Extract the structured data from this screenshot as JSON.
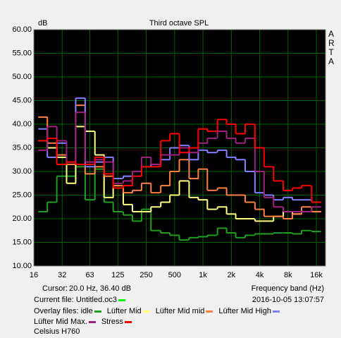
{
  "chart_data": {
    "type": "line",
    "step": true,
    "title": "Third octave SPL",
    "y_label": "dB",
    "brand": "ARTA",
    "x_label": "Frequency band (Hz)",
    "cursor_label": "Cursor:",
    "cursor_value": "20.0 Hz, 36.40 dB",
    "current_file": "Current file: Untitled.oc3",
    "current_file_color": "#00ff00",
    "timestamp": "2016-10-05  13:07:57",
    "overlay_label": "Overlay files:",
    "footer": "Celsius H760",
    "log_x": true,
    "grid": true,
    "xlim": [
      16,
      20000
    ],
    "ylim": [
      10,
      60
    ],
    "xticks": [
      16,
      32,
      63,
      125,
      250,
      500,
      {
        "value": 1000,
        "label": "1k"
      },
      {
        "value": 2000,
        "label": "2k"
      },
      {
        "value": 4000,
        "label": "4k"
      },
      {
        "value": 8000,
        "label": "8k"
      },
      {
        "value": 16000,
        "label": "16k"
      }
    ],
    "yticks": [
      {
        "value": 10,
        "label": "10.00"
      },
      {
        "value": 15,
        "label": "15.00"
      },
      {
        "value": 20,
        "label": "20.00"
      },
      {
        "value": 25,
        "label": "25.00"
      },
      {
        "value": 30,
        "label": "30.00"
      },
      {
        "value": 35,
        "label": "35.00"
      },
      {
        "value": 40,
        "label": "40.00"
      },
      {
        "value": 45,
        "label": "45.00"
      },
      {
        "value": 50,
        "label": "50.00"
      },
      {
        "value": 55,
        "label": "55.00"
      },
      {
        "value": 60,
        "label": "60.00"
      }
    ],
    "x": [
      20,
      25,
      31.5,
      40,
      50,
      63,
      80,
      100,
      125,
      160,
      200,
      250,
      315,
      400,
      500,
      630,
      800,
      1000,
      1250,
      1600,
      2000,
      2500,
      3150,
      4000,
      5000,
      6300,
      8000,
      10000,
      12500,
      16000
    ],
    "series": [
      {
        "name": "idle",
        "color": "#20a020",
        "values": [
          21.5,
          23.5,
          29,
          29,
          31,
          24,
          30.5,
          23.5,
          21.5,
          20.8,
          19.5,
          22,
          17.5,
          17,
          16.5,
          15.5,
          16,
          16.2,
          16.5,
          18,
          17,
          16,
          16.5,
          16.8,
          16.8,
          17,
          17,
          16.8,
          17.5,
          17.3
        ]
      },
      {
        "name": "Lüfter Mid",
        "color": "#ffff80",
        "values": [
          36.5,
          35,
          33,
          27.5,
          39.5,
          38.5,
          33.5,
          24.5,
          27,
          23,
          21.5,
          21.5,
          22.5,
          23.5,
          25,
          28,
          24.5,
          24,
          22,
          22.5,
          21,
          20,
          20,
          19.5,
          19.5,
          20.5,
          21.5,
          21,
          21.5,
          21.5
        ]
      },
      {
        "name": "Lüfter Mid mid",
        "color": "#ff8040",
        "values": [
          41.5,
          36,
          33.5,
          31.5,
          44,
          29.5,
          31,
          29,
          27,
          25.5,
          26,
          27.5,
          25.5,
          27,
          30,
          32.5,
          28.5,
          30.5,
          26,
          26.5,
          25,
          25,
          23.5,
          22,
          20.5,
          20.5,
          20,
          21,
          22.5,
          21.5
        ]
      },
      {
        "name": "Lüfter Mid High",
        "color": "#8080ff",
        "values": [
          39,
          33,
          36,
          32,
          45.5,
          31,
          32,
          33,
          28.5,
          29,
          30,
          31,
          31.5,
          32.5,
          35,
          35.5,
          32.5,
          34.5,
          34,
          34.5,
          33,
          32.5,
          30,
          25.5,
          25,
          24,
          24.5,
          24,
          24,
          23.5
        ]
      },
      {
        "name": "Lüfter Mid Max.",
        "color": "#a02080",
        "values": [
          34.5,
          39.5,
          36.5,
          32,
          42.5,
          32,
          32.5,
          32,
          27.5,
          28,
          30,
          33,
          31.5,
          33.5,
          33.5,
          35,
          34,
          36,
          37,
          38.5,
          37,
          36,
          37,
          30,
          24.5,
          22.5,
          21.5,
          21.5,
          21.5,
          22.5
        ]
      },
      {
        "name": "Stress",
        "color": "#ff0000",
        "values": [
          36.5,
          37,
          31.5,
          32,
          31.5,
          31.5,
          33,
          29.5,
          26.5,
          27,
          29,
          31,
          31,
          36.5,
          38,
          34,
          35,
          39,
          38.5,
          41,
          40,
          38,
          40,
          35,
          31,
          28,
          26,
          26.5,
          27,
          23.5
        ]
      }
    ]
  }
}
